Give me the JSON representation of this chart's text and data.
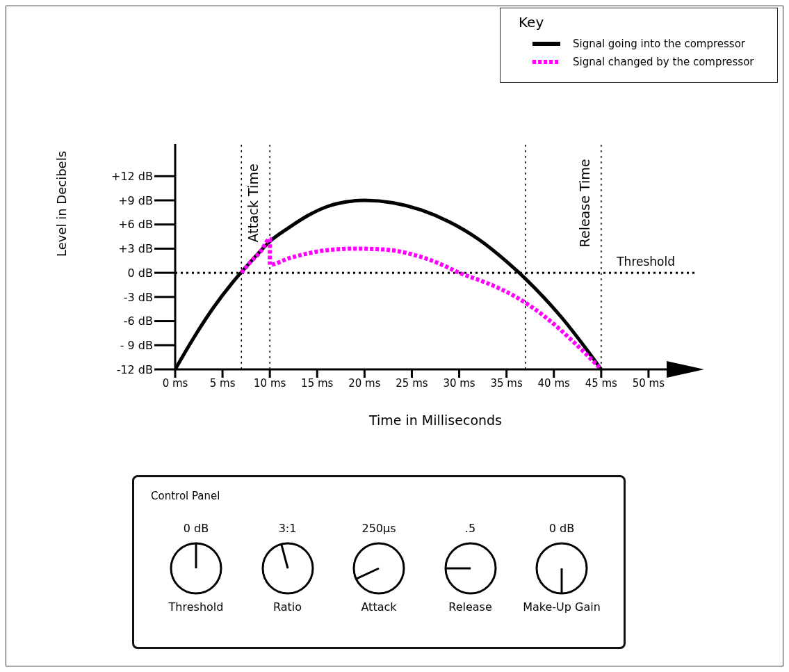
{
  "chart_data": {
    "type": "line",
    "xlabel": "Time in Milliseconds",
    "ylabel": "Level in Decibels",
    "legend_title": "Key",
    "legend": "top right",
    "marker": "none",
    "grid": false,
    "xlim": [
      0,
      55
    ],
    "ylim": [
      -12,
      16
    ],
    "xticks": [
      {
        "value": 0,
        "label": "0 ms"
      },
      {
        "value": 5,
        "label": "5 ms"
      },
      {
        "value": 10,
        "label": "10 ms"
      },
      {
        "value": 15,
        "label": "15 ms"
      },
      {
        "value": 20,
        "label": "20 ms"
      },
      {
        "value": 25,
        "label": "25 ms"
      },
      {
        "value": 30,
        "label": "30 ms"
      },
      {
        "value": 35,
        "label": "35 ms"
      },
      {
        "value": 40,
        "label": "40 ms"
      },
      {
        "value": 45,
        "label": "45 ms"
      },
      {
        "value": 50,
        "label": "50 ms"
      }
    ],
    "yticks": [
      {
        "value": -12,
        "label": "-12 dB"
      },
      {
        "value": -9,
        "label": "- 9 dB"
      },
      {
        "value": -6,
        "label": "-6 dB"
      },
      {
        "value": -3,
        "label": "-3 dB"
      },
      {
        "value": 0,
        "label": "0 dB"
      },
      {
        "value": 3,
        "label": "+3 dB"
      },
      {
        "value": 6,
        "label": "+6 dB"
      },
      {
        "value": 9,
        "label": "+9 dB"
      },
      {
        "value": 12,
        "label": "+12 dB"
      }
    ],
    "series": [
      {
        "name": "Signal going into the compressor",
        "color": "#000000",
        "line_style": "solid",
        "x": [
          0,
          2,
          4,
          6,
          8,
          10,
          12,
          14,
          16,
          18,
          20,
          23,
          26,
          29,
          32,
          35,
          38,
          41,
          43,
          45
        ],
        "values": [
          -12,
          -8,
          -4.4,
          -1.3,
          1.4,
          3.9,
          5.6,
          7.1,
          8.2,
          8.8,
          9,
          8.7,
          7.8,
          6.3,
          4.2,
          1.4,
          -1.9,
          -5.8,
          -8.8,
          -12
        ]
      },
      {
        "name": "Signal changed by the compressor",
        "color": "#ff00ff",
        "line_style": "dotted",
        "x": [
          7,
          8,
          9,
          10,
          10,
          12,
          14,
          16,
          19,
          22,
          25,
          28,
          30,
          33,
          36,
          39,
          42,
          45
        ],
        "values": [
          0,
          1.4,
          2.6,
          4.2,
          1,
          1.8,
          2.4,
          2.8,
          3,
          2.9,
          2.3,
          1.1,
          0,
          -1.3,
          -3,
          -5.4,
          -8.5,
          -12
        ]
      }
    ],
    "ref_lines": [
      {
        "axis": "x",
        "value": 7,
        "color": "#000000",
        "line_style": "dotted"
      },
      {
        "axis": "x",
        "value": 10,
        "label": "Attack Time",
        "color": "#000000",
        "line_style": "dotted"
      },
      {
        "axis": "x",
        "value": 37,
        "color": "#000000",
        "line_style": "dotted"
      },
      {
        "axis": "x",
        "value": 45,
        "label": "Release Time",
        "color": "#000000",
        "line_style": "dotted"
      },
      {
        "axis": "y",
        "value": 0,
        "label": "Threshold",
        "color": "#000000",
        "line_style": "dotted"
      }
    ],
    "annotations": [
      "Control Panel",
      "0 dB",
      "Threshold",
      "3:1",
      "Ratio",
      "250µs",
      "Attack",
      ".5",
      "Release",
      "0 dB",
      "Make-Up Gain"
    ]
  }
}
